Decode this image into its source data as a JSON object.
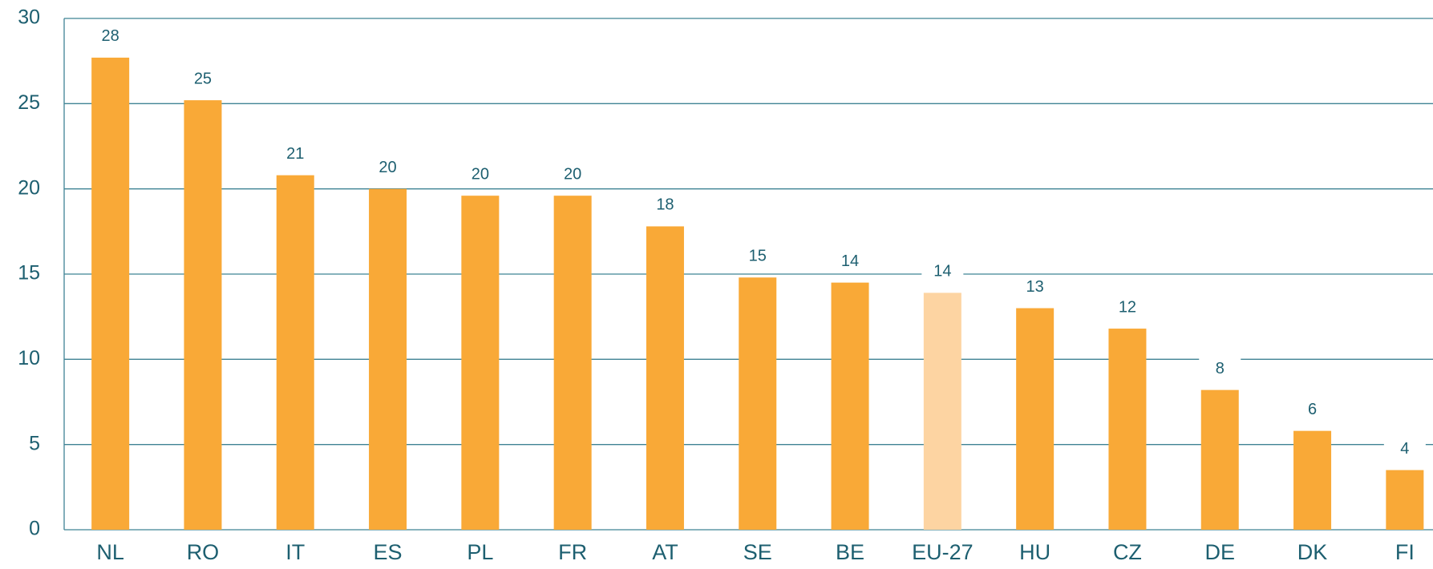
{
  "chart_data": {
    "type": "bar",
    "categories": [
      "NL",
      "RO",
      "IT",
      "ES",
      "PL",
      "FR",
      "AT",
      "SE",
      "BE",
      "EU-27",
      "HU",
      "CZ",
      "DE",
      "DK",
      "FI"
    ],
    "values": [
      27.7,
      25.2,
      20.8,
      20.0,
      19.6,
      19.6,
      17.8,
      14.8,
      14.5,
      13.9,
      13.0,
      11.8,
      8.2,
      5.8,
      3.5
    ],
    "value_labels": [
      "28",
      "25",
      "21",
      "20",
      "20",
      "20",
      "18",
      "15",
      "14",
      "14",
      "13",
      "12",
      "8",
      "6",
      "4"
    ],
    "colors": [
      "#f9a937",
      "#f9a937",
      "#f9a937",
      "#f9a937",
      "#f9a937",
      "#f9a937",
      "#f9a937",
      "#f9a937",
      "#f9a937",
      "#fdd4a2",
      "#f9a937",
      "#f9a937",
      "#f9a937",
      "#f9a937",
      "#f9a937"
    ],
    "ylim": [
      0,
      30
    ],
    "yticks": [
      0,
      5,
      10,
      15,
      20,
      25,
      30
    ],
    "grid": true
  }
}
